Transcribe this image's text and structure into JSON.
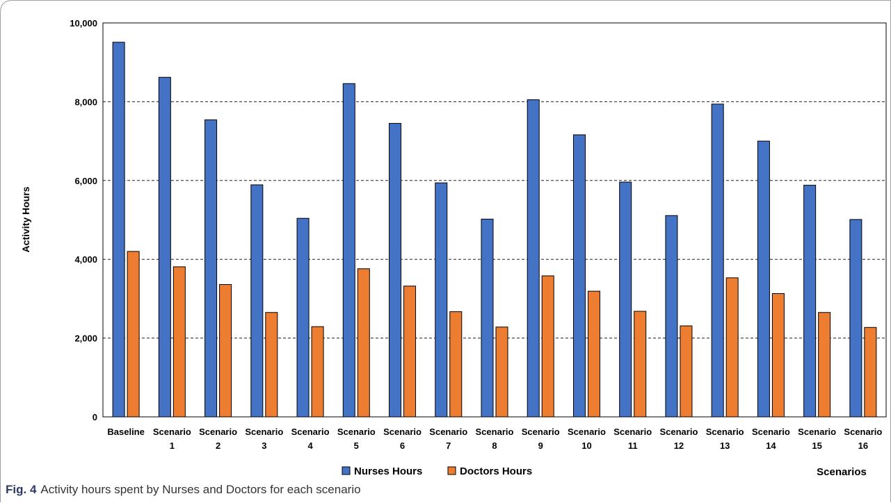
{
  "caption": {
    "label": "Fig. 4",
    "text": "Activity hours spent by Nurses and Doctors for each scenario"
  },
  "chart_data": {
    "type": "bar",
    "title": "",
    "xlabel": "Scenarios",
    "ylabel": "Activity Hours",
    "ylim": [
      0,
      10000
    ],
    "yticks": [
      0,
      2000,
      4000,
      6000,
      8000,
      10000
    ],
    "ytick_labels": [
      "0",
      "2,000",
      "4,000",
      "6,000",
      "8,000",
      "10,000"
    ],
    "grid": "horizontal-dashed",
    "legend_position": "bottom-center",
    "categories": [
      [
        "Baseline"
      ],
      [
        "Scenario",
        "1"
      ],
      [
        "Scenario",
        "2"
      ],
      [
        "Scenario",
        "3"
      ],
      [
        "Scenario",
        "4"
      ],
      [
        "Scenario",
        "5"
      ],
      [
        "Scenario",
        "6"
      ],
      [
        "Scenario",
        "7"
      ],
      [
        "Scenario",
        "8"
      ],
      [
        "Scenario",
        "9"
      ],
      [
        "Scenario",
        "10"
      ],
      [
        "Scenario",
        "11"
      ],
      [
        "Scenario",
        "12"
      ],
      [
        "Scenario",
        "13"
      ],
      [
        "Scenario",
        "14"
      ],
      [
        "Scenario",
        "15"
      ],
      [
        "Scenario",
        "16"
      ]
    ],
    "series": [
      {
        "name": "Nurses Hours",
        "color": "#4472C4",
        "values": [
          9510,
          8620,
          7540,
          5890,
          5040,
          8460,
          7450,
          5940,
          5020,
          8050,
          7160,
          5960,
          5110,
          7940,
          7000,
          5880,
          5010
        ]
      },
      {
        "name": "Doctors Hours",
        "color": "#ED7D31",
        "values": [
          4200,
          3810,
          3360,
          2650,
          2290,
          3760,
          3320,
          2670,
          2280,
          3580,
          3190,
          2680,
          2310,
          3530,
          3130,
          2650,
          2270
        ]
      }
    ]
  }
}
